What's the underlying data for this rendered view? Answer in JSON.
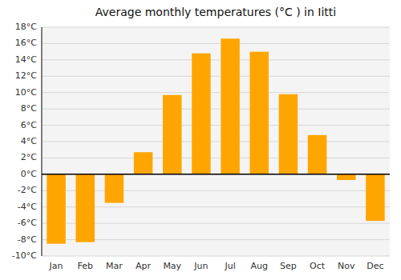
{
  "chart_data": {
    "type": "bar",
    "title": "Average monthly temperatures (°C ) in Iitti",
    "categories": [
      "Jan",
      "Feb",
      "Mar",
      "Apr",
      "May",
      "Jun",
      "Jul",
      "Aug",
      "Sep",
      "Oct",
      "Nov",
      "Dec"
    ],
    "values": [
      -8.5,
      -8.3,
      -3.5,
      2.7,
      9.7,
      14.8,
      16.6,
      15.0,
      9.8,
      4.8,
      -0.7,
      -5.7
    ],
    "color": "#FFA500",
    "ylim": [
      -10,
      18
    ],
    "yticks": [
      {
        "value": -10,
        "label": "-10°C"
      },
      {
        "value": -8,
        "label": "-8°C"
      },
      {
        "value": -6,
        "label": "-6°C"
      },
      {
        "value": -4,
        "label": "-4°C"
      },
      {
        "value": -2,
        "label": "-2°C"
      },
      {
        "value": 0,
        "label": "0°C"
      },
      {
        "value": 2,
        "label": "2°C"
      },
      {
        "value": 4,
        "label": "4°C"
      },
      {
        "value": 6,
        "label": "6°C"
      },
      {
        "value": 8,
        "label": "8°C"
      },
      {
        "value": 10,
        "label": "10°C"
      },
      {
        "value": 12,
        "label": "12°C"
      },
      {
        "value": 14,
        "label": "14°C"
      },
      {
        "value": 16,
        "label": "16°C"
      },
      {
        "value": 18,
        "label": "18°C"
      }
    ],
    "grid": true
  }
}
